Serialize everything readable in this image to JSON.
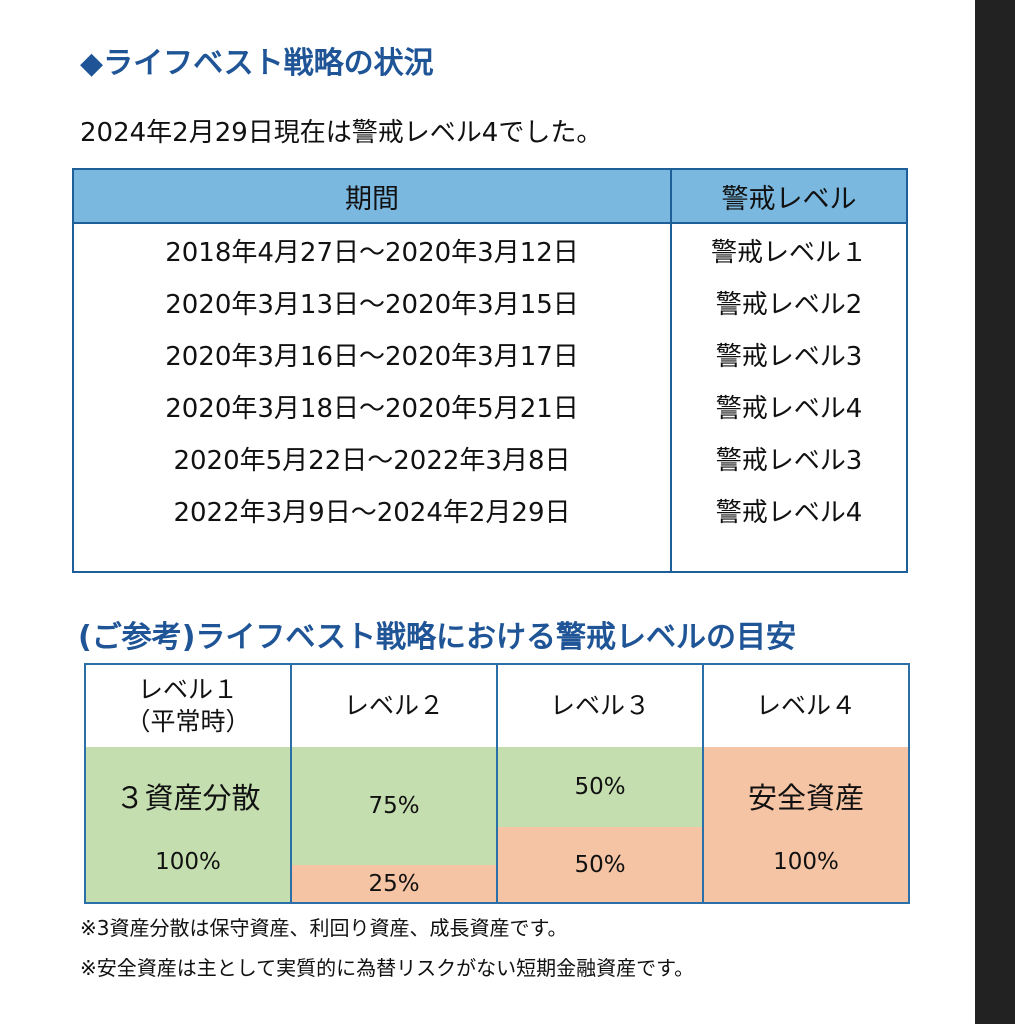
{
  "section1": {
    "title": "◆ライフベスト戦略の状況",
    "status": "2024年2月29日現在は警戒レベル4でした。",
    "table": {
      "headers": [
        "期間",
        "警戒レベル"
      ],
      "rows": [
        [
          "2018年4月27日～2020年3月12日",
          "警戒レベル１"
        ],
        [
          "2020年3月13日～2020年3月15日",
          "警戒レベル2"
        ],
        [
          "2020年3月16日～2020年3月17日",
          "警戒レベル3"
        ],
        [
          "2020年3月18日～2020年5月21日",
          "警戒レベル4"
        ],
        [
          "2020年5月22日～2022年3月8日",
          "警戒レベル3"
        ],
        [
          "2022年3月9日～2024年2月29日",
          "警戒レベル4"
        ]
      ]
    }
  },
  "section2": {
    "title": "(ご参考)ライフベスト戦略における警戒レベルの目安",
    "levels": [
      {
        "header": [
          "レベル１",
          "（平常時）"
        ],
        "segments": [
          {
            "lines": [
              "３資産分散",
              "100%"
            ]
          }
        ]
      },
      {
        "header": [
          "レベル２"
        ],
        "segments": [
          {
            "lines": [
              "75%"
            ]
          },
          {
            "lines": [
              "25%"
            ]
          }
        ]
      },
      {
        "header": [
          "レベル３"
        ],
        "segments": [
          {
            "lines": [
              "50%"
            ]
          },
          {
            "lines": [
              "50%"
            ]
          }
        ]
      },
      {
        "header": [
          "レベル４"
        ],
        "segments": [
          {
            "lines": [
              "安全資産",
              "100%"
            ]
          }
        ]
      }
    ]
  },
  "notes": [
    "※3資産分散は保守資産、利回り資産、成長資産です。",
    "※安全資産は主として実質的に為替リスクがない短期金融資産です。"
  ]
}
